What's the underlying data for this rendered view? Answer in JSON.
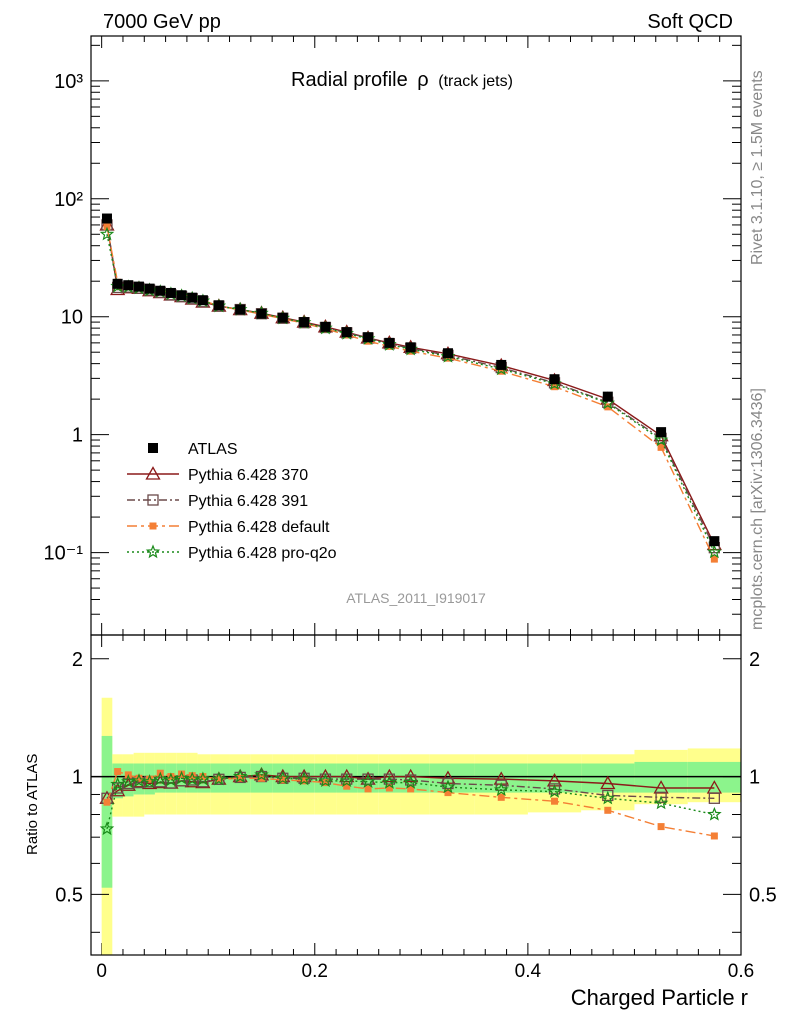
{
  "header": {
    "left": "7000 GeV pp",
    "right": "Soft QCD"
  },
  "side_labels": {
    "rivet": "Rivet 3.1.10, ≥ 1.5M events",
    "mcplots": "mcplots.cern.ch [arXiv:1306.3436]"
  },
  "chart_data": {
    "type": "line",
    "title": "Radial profile",
    "title_symbol": "ρ",
    "title_suffix": "(track jets)",
    "watermark": "ATLAS_2011_I919017",
    "xlabel": "Charged Particle r",
    "ylabel_ratio": "Ratio to ATLAS",
    "xlim": [
      -0.01,
      0.6
    ],
    "ylim": [
      0.02,
      2400
    ],
    "ylim_ratio": [
      0.35,
      2.3
    ],
    "yscale": "log",
    "legend_position": "left-middle",
    "x_ticks": [
      "0",
      "0.2",
      "0.4",
      "0.6"
    ],
    "y_ticks": [
      "10⁻¹",
      "1",
      "10",
      "10²",
      "10³"
    ],
    "ratio_ticks": [
      "0.5",
      "1",
      "2"
    ],
    "x": [
      0.005,
      0.015,
      0.025,
      0.035,
      0.045,
      0.055,
      0.065,
      0.075,
      0.085,
      0.095,
      0.11,
      0.13,
      0.15,
      0.17,
      0.19,
      0.21,
      0.23,
      0.25,
      0.27,
      0.29,
      0.325,
      0.375,
      0.425,
      0.475,
      0.525,
      0.575
    ],
    "series": [
      {
        "name": "ATLAS",
        "color": "#000000",
        "marker": "square",
        "dash": "none",
        "values": [
          68,
          19,
          18.5,
          18,
          17.3,
          16.6,
          15.9,
          15.2,
          14.5,
          13.8,
          12.5,
          11.5,
          10.6,
          9.8,
          9.0,
          8.2,
          7.4,
          6.7,
          6.0,
          5.5,
          4.9,
          3.9,
          2.95,
          2.1,
          1.05,
          0.125
        ]
      },
      {
        "name": "Pythia 6.428 370",
        "color": "#8b1a1a",
        "marker": "triangle",
        "dash": "none",
        "values": [
          60,
          17.0,
          17.6,
          17.4,
          16.6,
          16.0,
          15.3,
          14.8,
          14.1,
          13.3,
          12.3,
          11.5,
          10.7,
          9.8,
          9.0,
          8.2,
          7.4,
          6.6,
          6.0,
          5.5,
          4.85,
          3.85,
          2.88,
          2.0,
          0.98,
          0.117
        ]
      },
      {
        "name": "Pythia 6.428 391",
        "color": "#6b4a4a",
        "marker": "opensquare",
        "dash": "8,3,2,3",
        "values": [
          60,
          17.7,
          17.8,
          17.4,
          16.8,
          16.1,
          15.3,
          14.8,
          14.2,
          13.4,
          12.3,
          11.5,
          10.6,
          9.7,
          8.9,
          8.1,
          7.3,
          6.6,
          5.9,
          5.4,
          4.7,
          3.7,
          2.75,
          1.88,
          0.93,
          0.11
        ]
      },
      {
        "name": "Pythia 6.428 default",
        "color": "#f47f35",
        "marker": "fullsquare",
        "dash": "10,4,3,4",
        "values": [
          58,
          19.6,
          18.7,
          17.8,
          17.0,
          16.9,
          15.9,
          15.4,
          14.6,
          13.8,
          12.3,
          11.4,
          10.5,
          9.6,
          8.8,
          7.9,
          7.0,
          6.2,
          5.6,
          5.1,
          4.45,
          3.45,
          2.55,
          1.72,
          0.78,
          0.088
        ]
      },
      {
        "name": "Pythia 6.428 pro-q2o",
        "color": "#1a8a1a",
        "marker": "star",
        "dash": "2,3",
        "values": [
          50,
          18.1,
          17.9,
          17.5,
          16.8,
          16.3,
          15.6,
          15.0,
          14.3,
          13.6,
          12.3,
          11.5,
          10.7,
          9.7,
          8.9,
          8.0,
          7.2,
          6.5,
          5.8,
          5.3,
          4.6,
          3.6,
          2.7,
          1.85,
          0.9,
          0.101
        ]
      }
    ],
    "ratio_series": [
      {
        "name": "Pythia 6.428 370",
        "values": [
          0.88,
          0.92,
          0.95,
          0.97,
          0.96,
          0.965,
          0.962,
          0.975,
          0.97,
          0.965,
          0.985,
          1.0,
          1.01,
          1.0,
          1.0,
          1.0,
          1.0,
          0.985,
          1.0,
          1.0,
          0.99,
          0.985,
          0.975,
          0.96,
          0.935,
          0.935
        ]
      },
      {
        "name": "Pythia 6.428 391",
        "values": [
          0.88,
          0.935,
          0.96,
          0.965,
          0.97,
          0.97,
          0.963,
          0.975,
          0.98,
          0.97,
          0.984,
          0.995,
          1.0,
          0.99,
          0.99,
          0.985,
          0.985,
          0.985,
          0.985,
          0.98,
          0.96,
          0.95,
          0.93,
          0.895,
          0.885,
          0.88
        ]
      },
      {
        "name": "Pythia 6.428 default",
        "values": [
          0.86,
          1.03,
          1.01,
          0.99,
          0.985,
          1.02,
          1.0,
          1.015,
          1.005,
          1.0,
          0.985,
          0.99,
          0.99,
          0.98,
          0.975,
          0.965,
          0.945,
          0.93,
          0.935,
          0.93,
          0.91,
          0.885,
          0.865,
          0.82,
          0.745,
          0.705
        ]
      },
      {
        "name": "Pythia 6.428 pro-q2o",
        "values": [
          0.735,
          0.955,
          0.97,
          0.975,
          0.97,
          0.985,
          0.98,
          0.99,
          0.985,
          0.985,
          0.985,
          1.0,
          1.01,
          0.99,
          0.985,
          0.975,
          0.975,
          0.97,
          0.965,
          0.965,
          0.94,
          0.925,
          0.915,
          0.88,
          0.855,
          0.8
        ]
      }
    ],
    "ratio_band_inner": [
      0.52,
      0.88,
      0.89,
      0.9,
      0.9,
      0.91,
      0.91,
      0.91,
      0.91,
      0.91,
      0.91,
      0.91,
      0.91,
      0.91,
      0.91,
      0.91,
      0.91,
      0.91,
      0.91,
      0.91,
      0.91,
      0.91,
      0.91,
      0.91,
      0.91,
      0.91
    ],
    "ratio_band_inner_hi": [
      1.27,
      1.08,
      1.08,
      1.08,
      1.08,
      1.08,
      1.08,
      1.08,
      1.08,
      1.08,
      1.08,
      1.08,
      1.08,
      1.08,
      1.08,
      1.08,
      1.08,
      1.08,
      1.08,
      1.08,
      1.08,
      1.08,
      1.08,
      1.08,
      1.09,
      1.09
    ],
    "ratio_band_outer_lo": [
      0.35,
      0.79,
      0.79,
      0.79,
      0.8,
      0.8,
      0.8,
      0.8,
      0.8,
      0.8,
      0.8,
      0.8,
      0.8,
      0.8,
      0.8,
      0.8,
      0.8,
      0.8,
      0.8,
      0.8,
      0.8,
      0.8,
      0.81,
      0.82,
      0.85,
      0.86
    ],
    "ratio_band_outer_hi": [
      1.59,
      1.14,
      1.14,
      1.15,
      1.15,
      1.15,
      1.15,
      1.15,
      1.15,
      1.14,
      1.14,
      1.14,
      1.14,
      1.14,
      1.14,
      1.14,
      1.14,
      1.14,
      1.14,
      1.14,
      1.14,
      1.14,
      1.14,
      1.14,
      1.17,
      1.18
    ]
  }
}
